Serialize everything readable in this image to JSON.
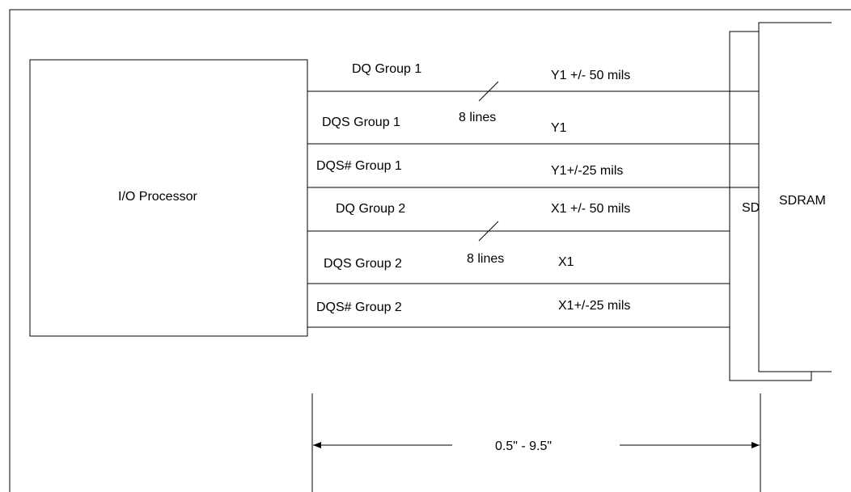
{
  "diagram": {
    "processor_label": "I/O Processor",
    "sdram_back_label": "SD",
    "sdram_front_label": "SDRAM",
    "signals": [
      {
        "name": "DQ Group 1",
        "length": "Y1 +/- 50 mils"
      },
      {
        "name": "DQS Group 1",
        "length": "Y1"
      },
      {
        "name": "DQS# Group 1",
        "length": "Y1+/-25 mils"
      },
      {
        "name": "DQ Group 2",
        "length": "X1 +/- 50 mils"
      },
      {
        "name": "DQS Group 2",
        "length": "X1"
      },
      {
        "name": "DQS# Group 2",
        "length": "X1+/-25 mils"
      }
    ],
    "bus_labels": [
      "8 lines",
      "8 lines"
    ],
    "dimension_label": "0.5\" - 9.5\""
  }
}
